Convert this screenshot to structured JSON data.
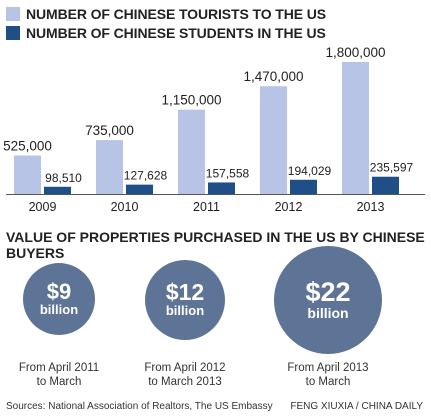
{
  "colors": {
    "tourists": "#b8c4e6",
    "students": "#1e4f86",
    "bubble": "#5d7496",
    "baseline": "#555555"
  },
  "legend": [
    {
      "label": "NUMBER OF CHINESE TOURISTS TO THE US",
      "color": "#b8c4e6"
    },
    {
      "label": "NUMBER OF CHINESE STUDENTS IN THE US",
      "color": "#1e4f86"
    }
  ],
  "chart_data": [
    {
      "type": "bar",
      "categories": [
        "2009",
        "2010",
        "2011",
        "2012",
        "2013"
      ],
      "series": [
        {
          "name": "NUMBER OF CHINESE TOURISTS TO THE US",
          "values": [
            525000,
            735000,
            1150000,
            1470000,
            1800000
          ],
          "labels": [
            "525,000",
            "735,000",
            "1,150,000",
            "1,470,000",
            "1,800,000"
          ]
        },
        {
          "name": "NUMBER OF CHINESE STUDENTS IN THE US",
          "values": [
            98510,
            127628,
            157558,
            194029,
            235597
          ],
          "labels": [
            "98,510",
            "127,628",
            "157,558",
            "194,029",
            "235,597"
          ]
        }
      ],
      "grid": false,
      "legend_position": "top-left"
    },
    {
      "type": "bubble",
      "title": "VALUE OF PROPERTIES PURCHASED IN THE US BY CHINESE BUYERS",
      "items": [
        {
          "value": 9,
          "amount": "$9",
          "unit": "billion",
          "period": "From April 2011 to March"
        },
        {
          "value": 12,
          "amount": "$12",
          "unit": "billion",
          "period": "From April 2012 to March 2013"
        },
        {
          "value": 22,
          "amount": "$22",
          "unit": "billion",
          "period": "From April 2013 to March"
        }
      ]
    }
  ],
  "properties": {
    "title": "VALUE OF PROPERTIES PURCHASED IN THE US BY CHINESE BUYERS",
    "bubbles": [
      {
        "amount": "$9",
        "unit": "billion",
        "caption_line1": "From April 2011",
        "caption_line2": "to March"
      },
      {
        "amount": "$12",
        "unit": "billion",
        "caption_line1": "From April 2012",
        "caption_line2": "to March 2013"
      },
      {
        "amount": "$22",
        "unit": "billion",
        "caption_line1": "From April 2013",
        "caption_line2": "to March"
      }
    ]
  },
  "footer": {
    "source": "Sources: National Association of Realtors, The US Embassy",
    "credit": "FENG XIUXIA / CHINA DAILY"
  }
}
